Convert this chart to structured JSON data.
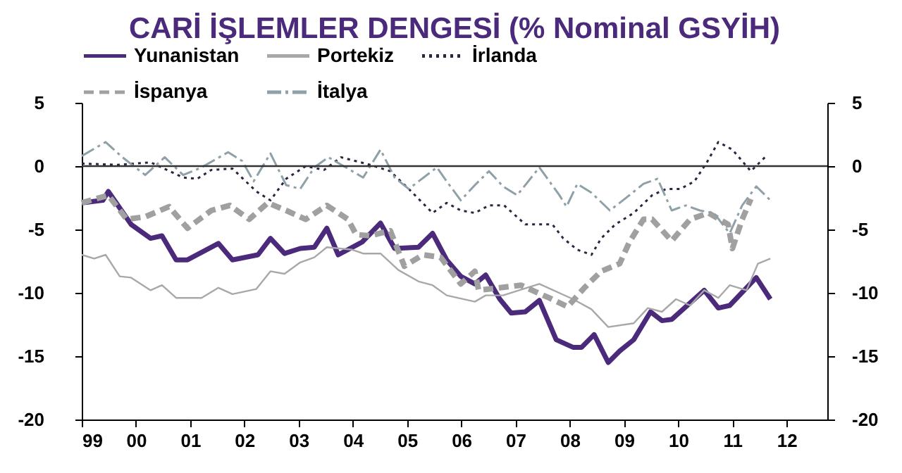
{
  "chart_data": {
    "type": "line",
    "title": "CARİ İŞLEMLER DENGESİ (% Nominal GSYİH)",
    "xlim": [
      1999,
      2012.75
    ],
    "xticks": [
      {
        "value": 1999,
        "label": "99"
      },
      {
        "value": 2000,
        "label": "00"
      },
      {
        "value": 2001,
        "label": "01"
      },
      {
        "value": 2002,
        "label": "02"
      },
      {
        "value": 2003,
        "label": "03"
      },
      {
        "value": 2004,
        "label": "04"
      },
      {
        "value": 2005,
        "label": "05"
      },
      {
        "value": 2006,
        "label": "06"
      },
      {
        "value": 2007,
        "label": "07"
      },
      {
        "value": 2008,
        "label": "08"
      },
      {
        "value": 2009,
        "label": "09"
      },
      {
        "value": 2010,
        "label": "10"
      },
      {
        "value": 2011,
        "label": "11"
      },
      {
        "value": 2012,
        "label": "12"
      }
    ],
    "ylim": [
      -20,
      5
    ],
    "yticks": [
      -20,
      -15,
      -10,
      -5,
      0,
      5
    ],
    "y2lim": [
      -20,
      5
    ],
    "y2ticks": [
      -20,
      -15,
      -10,
      -5,
      0,
      5
    ],
    "grid": false,
    "legend": "top",
    "ref_lines": [
      {
        "axis": "y",
        "value": 0,
        "color": "#333333"
      }
    ],
    "series": [
      {
        "name": "Yunanistan",
        "color": "#4b2a7b",
        "line_style": "solid",
        "x": [
          1999,
          1999.39,
          1999.49,
          1999.91,
          2000.27,
          2000.48,
          2000.74,
          2000.95,
          2001.52,
          2001.78,
          2002.25,
          2002.48,
          2002.74,
          2003.03,
          2003.29,
          2003.52,
          2003.73,
          2004.17,
          2004.51,
          2004.77,
          2005.21,
          2005.47,
          2005.73,
          2005.99,
          2006.25,
          2006.45,
          2006.71,
          2006.92,
          2007.18,
          2007.44,
          2007.75,
          2008.06,
          2008.22,
          2008.45,
          2008.71,
          2008.92,
          2009.18,
          2009.49,
          2009.7,
          2009.88,
          2010.48,
          2010.74,
          2010.95,
          2011.44,
          2011.7
        ],
        "values": [
          -2.9,
          -2.7,
          -2.0,
          -4.6,
          -5.7,
          -5.5,
          -7.4,
          -7.4,
          -6.1,
          -7.4,
          -7.0,
          -5.7,
          -6.9,
          -6.5,
          -6.4,
          -4.9,
          -7.0,
          -6.0,
          -4.5,
          -6.5,
          -6.4,
          -5.3,
          -7.4,
          -8.7,
          -9.3,
          -8.6,
          -10.5,
          -11.6,
          -11.5,
          -10.6,
          -13.7,
          -14.3,
          -14.3,
          -13.3,
          -15.5,
          -14.6,
          -13.7,
          -11.5,
          -12.2,
          -12.1,
          -9.8,
          -11.2,
          -11.0,
          -8.8,
          -10.5
        ]
      },
      {
        "name": "Portekiz",
        "color": "#a8a8a8",
        "line_style": "solid",
        "x": [
          1999,
          1999.23,
          1999.44,
          1999.7,
          1999.91,
          2000.27,
          2000.48,
          2000.74,
          2001.21,
          2001.52,
          2001.78,
          2002.22,
          2002.48,
          2002.74,
          2003.03,
          2003.29,
          2003.52,
          2003.99,
          2004.19,
          2004.51,
          2004.84,
          2005.21,
          2005.47,
          2005.73,
          2006.25,
          2006.45,
          2006.77,
          2007.44,
          2008.06,
          2008.4,
          2008.71,
          2009.18,
          2009.44,
          2009.7,
          2009.96,
          2010.22,
          2010.48,
          2010.74,
          2010.95,
          2011.26,
          2011.47,
          2011.7
        ],
        "values": [
          -7.0,
          -7.3,
          -7.0,
          -8.7,
          -8.8,
          -9.8,
          -9.4,
          -10.4,
          -10.4,
          -9.6,
          -10.1,
          -9.7,
          -8.3,
          -8.5,
          -7.6,
          -7.2,
          -6.4,
          -6.6,
          -6.9,
          -6.9,
          -8.2,
          -9.1,
          -9.4,
          -10.2,
          -10.7,
          -10.2,
          -10.2,
          -9.3,
          -10.5,
          -11.3,
          -12.7,
          -12.4,
          -11.2,
          -11.5,
          -10.5,
          -11.0,
          -9.8,
          -10.4,
          -9.4,
          -9.8,
          -7.7,
          -7.3
        ]
      },
      {
        "name": "İrlanda",
        "color": "#2d2440",
        "line_style": "dotted",
        "x": [
          1999,
          1999.65,
          2000.27,
          2000.87,
          2001.13,
          2001.39,
          2001.78,
          2002.22,
          2002.48,
          2002.77,
          2003.13,
          2003.47,
          2003.78,
          2004.32,
          2004.69,
          2005.03,
          2005.47,
          2005.73,
          2005.99,
          2006.25,
          2006.51,
          2006.79,
          2007.18,
          2007.68,
          2007.88,
          2008.14,
          2008.4,
          2008.58,
          2008.84,
          2009.18,
          2009.52,
          2009.78,
          2010.04,
          2010.3,
          2010.53,
          2010.74,
          2011.0,
          2011.34,
          2011.6
        ],
        "values": [
          0.2,
          0.1,
          0.3,
          -0.9,
          -1.0,
          -0.3,
          -0.2,
          -2.0,
          -2.7,
          -1.0,
          0,
          -0.3,
          0.7,
          0.1,
          -0.4,
          -1.8,
          -3.7,
          -2.9,
          -3.5,
          -3.7,
          -3.1,
          -3.1,
          -4.6,
          -4.6,
          -5.7,
          -6.6,
          -7.0,
          -5.7,
          -4.6,
          -3.7,
          -2.3,
          -1.8,
          -1.8,
          -1.2,
          0.3,
          1.9,
          1.3,
          -0.4,
          0.7
        ]
      },
      {
        "name": "İspanya",
        "color": "#a0a0a0",
        "line_style": "dashed",
        "x": [
          1999,
          1999.49,
          1999.83,
          2000.17,
          2000.61,
          2000.95,
          2001.39,
          2001.73,
          2002.09,
          2002.43,
          2002.77,
          2003.13,
          2003.52,
          2003.91,
          2004.06,
          2004.32,
          2004.69,
          2004.95,
          2005.29,
          2005.62,
          2005.99,
          2006.25,
          2006.32,
          2007.1,
          2007.62,
          2007.96,
          2008.27,
          2008.58,
          2008.92,
          2009.1,
          2009.36,
          2009.52,
          2009.88,
          2010.22,
          2010.56,
          2010.92,
          2011.0,
          2011.18,
          2011.34
        ],
        "values": [
          -2.9,
          -2.3,
          -4.2,
          -4.0,
          -3.2,
          -4.9,
          -3.5,
          -3.1,
          -4.2,
          -2.9,
          -3.5,
          -4.2,
          -3.1,
          -4.2,
          -5.4,
          -5.5,
          -5.1,
          -7.9,
          -7.0,
          -7.2,
          -9.3,
          -8.3,
          -9.8,
          -9.4,
          -10.4,
          -11.1,
          -9.6,
          -8.3,
          -7.7,
          -6.0,
          -4.2,
          -4.2,
          -5.9,
          -4.2,
          -3.7,
          -4.6,
          -6.5,
          -4.2,
          -2.6
        ]
      },
      {
        "name": "İtalya",
        "color": "#8fa0a8",
        "line_style": "dashed",
        "x": [
          1999,
          1999.44,
          1999.75,
          2000.17,
          2000.53,
          2000.87,
          2001.21,
          2001.7,
          2001.96,
          2002.17,
          2002.48,
          2002.77,
          2003.03,
          2003.29,
          2003.55,
          2003.99,
          2004.19,
          2004.51,
          2004.77,
          2005.03,
          2005.55,
          2005.73,
          2005.99,
          2006.25,
          2006.51,
          2006.77,
          2007.03,
          2007.44,
          2007.81,
          2007.94,
          2008.14,
          2008.4,
          2008.74,
          2009.1,
          2009.36,
          2009.62,
          2009.88,
          2010.14,
          2010.4,
          2010.66,
          2010.82,
          2010.95,
          2011.18,
          2011.44,
          2011.7
        ],
        "values": [
          0.8,
          1.9,
          0.7,
          -0.7,
          0.7,
          -0.7,
          -0.1,
          1.1,
          0.4,
          -1.2,
          1.0,
          -1.5,
          -1.8,
          -0.1,
          0.7,
          -0.4,
          -0.9,
          1.3,
          -0.9,
          -1.8,
          -0.1,
          -1.2,
          -2.7,
          -1.5,
          -0.4,
          -1.6,
          -2.3,
          -0.1,
          -2.3,
          -3.2,
          -1.4,
          -2.1,
          -3.5,
          -2.3,
          -1.4,
          -1.0,
          -3.5,
          -3.1,
          -3.5,
          -3.7,
          -4.6,
          -5.3,
          -3.1,
          -1.6,
          -2.7
        ]
      }
    ]
  }
}
